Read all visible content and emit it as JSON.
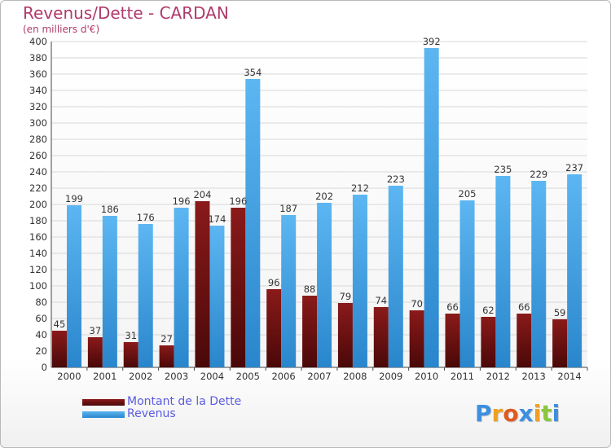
{
  "chart_data": {
    "type": "bar",
    "title": "Revenus/Dette - CARDAN",
    "subtitle": "(en milliers d'€)",
    "categories": [
      "2000",
      "2001",
      "2002",
      "2003",
      "2004",
      "2005",
      "2006",
      "2007",
      "2008",
      "2009",
      "2010",
      "2011",
      "2012",
      "2013",
      "2014"
    ],
    "series": [
      {
        "name": "Montant de la Dette",
        "color": "#7a1414",
        "values": [
          45,
          37,
          31,
          27,
          204,
          196,
          96,
          88,
          79,
          74,
          70,
          66,
          62,
          66,
          59
        ]
      },
      {
        "name": "Revenus",
        "color": "#3d9ee4",
        "values": [
          199,
          186,
          176,
          196,
          174,
          354,
          187,
          202,
          212,
          223,
          392,
          205,
          235,
          229,
          237
        ]
      }
    ],
    "ylim": [
      0,
      400
    ],
    "ytick_step": 20,
    "grid": true,
    "legend_position": "bottom-left"
  },
  "logo": {
    "letters": [
      "P",
      "r",
      "o",
      "x",
      "i",
      "t",
      "i"
    ],
    "colors": [
      "#3d8fe0",
      "#f0a020",
      "#e05a20",
      "#3d8fe0",
      "#f0a020",
      "#8cc63e",
      "#3d8fe0"
    ]
  }
}
